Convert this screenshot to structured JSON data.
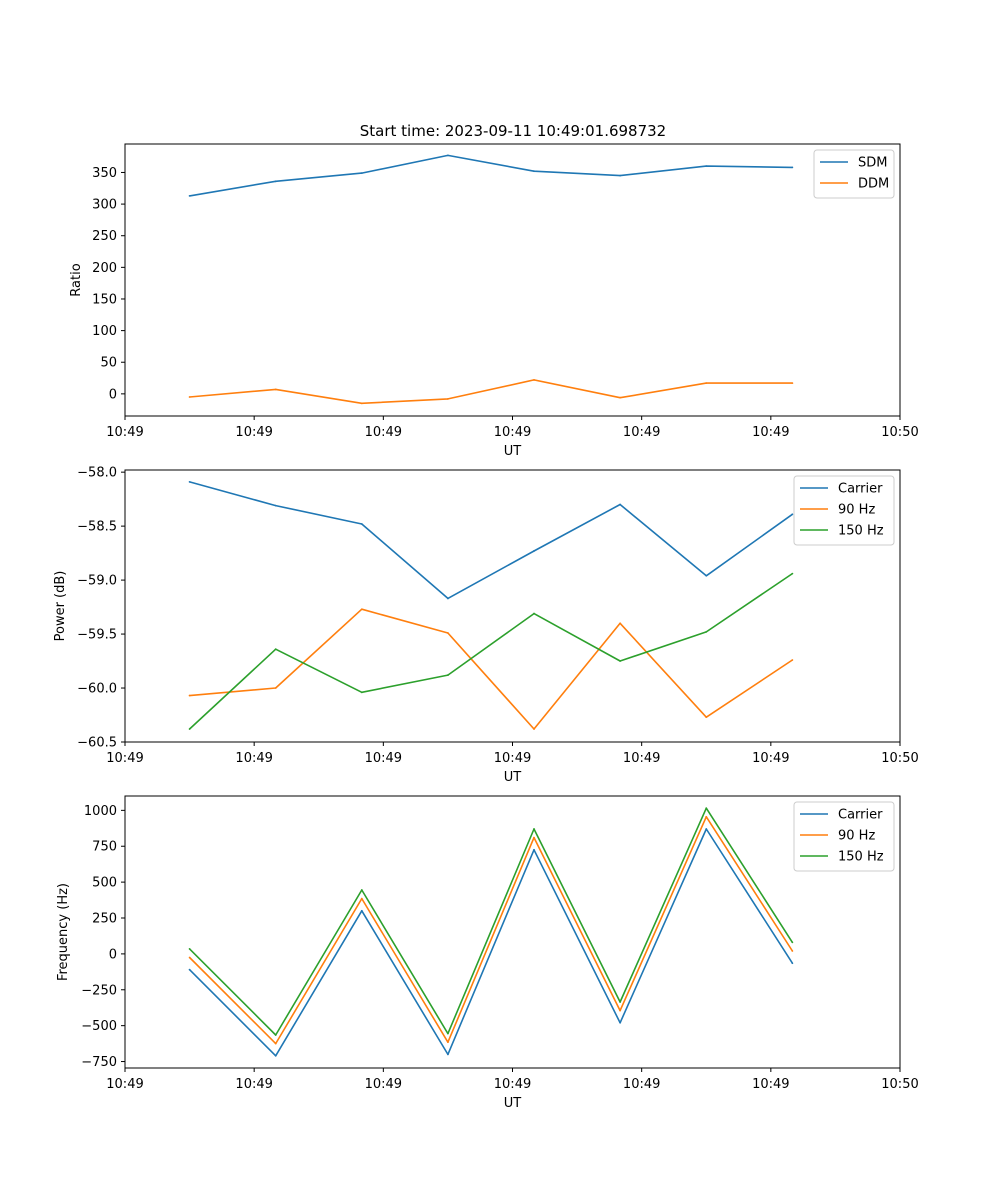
{
  "figure_title": "Start time: 2023-09-11 10:49:01.698732",
  "colors": {
    "blue": "#1f77b4",
    "orange": "#ff7f0e",
    "green": "#2ca02c"
  },
  "chart_data": [
    {
      "type": "line",
      "title": "Start time: 2023-09-11 10:49:01.698732",
      "xlabel": "UT",
      "ylabel": "Ratio",
      "grid": false,
      "legend_position": "top-right",
      "x": [
        1,
        2,
        3,
        4,
        5,
        6,
        7,
        8
      ],
      "xlim": [
        0.25,
        9.25
      ],
      "xticks": [
        0.25,
        1.75,
        3.25,
        4.75,
        6.25,
        7.75,
        9.25
      ],
      "xtick_labels": [
        "10:49",
        "10:49",
        "10:49",
        "10:49",
        "10:49",
        "10:49",
        "10:50"
      ],
      "ylim": [
        -35,
        395
      ],
      "yticks": [
        0,
        50,
        100,
        150,
        200,
        250,
        300,
        350
      ],
      "ytick_labels": [
        "0",
        "50",
        "100",
        "150",
        "200",
        "250",
        "300",
        "350"
      ],
      "series": [
        {
          "name": "SDM",
          "color": "#1f77b4",
          "values": [
            313,
            336,
            349,
            377,
            352,
            345,
            360,
            358
          ]
        },
        {
          "name": "DDM",
          "color": "#ff7f0e",
          "values": [
            -5,
            7,
            -15,
            -8,
            22,
            -6,
            17,
            17
          ]
        }
      ]
    },
    {
      "type": "line",
      "title": "",
      "xlabel": "UT",
      "ylabel": "Power (dB)",
      "grid": false,
      "legend_position": "top-right",
      "x": [
        1,
        2,
        3,
        4,
        5,
        6,
        7,
        8
      ],
      "xlim": [
        0.25,
        9.25
      ],
      "xticks": [
        0.25,
        1.75,
        3.25,
        4.75,
        6.25,
        7.75,
        9.25
      ],
      "xtick_labels": [
        "10:49",
        "10:49",
        "10:49",
        "10:49",
        "10:49",
        "10:49",
        "10:50"
      ],
      "ylim": [
        -60.5,
        -57.98
      ],
      "yticks": [
        -60.5,
        -60.0,
        -59.5,
        -59.0,
        -58.5,
        -58.0
      ],
      "ytick_labels": [
        "−60.5",
        "−60.0",
        "−59.5",
        "−59.0",
        "−58.5",
        "−58.0"
      ],
      "series": [
        {
          "name": "Carrier",
          "color": "#1f77b4",
          "values": [
            -58.09,
            -58.31,
            -58.48,
            -59.17,
            -58.73,
            -58.3,
            -58.96,
            -58.39
          ]
        },
        {
          "name": "90 Hz",
          "color": "#ff7f0e",
          "values": [
            -60.07,
            -60.0,
            -59.27,
            -59.49,
            -60.38,
            -59.4,
            -60.27,
            -59.74
          ]
        },
        {
          "name": "150 Hz",
          "color": "#2ca02c",
          "values": [
            -60.38,
            -59.64,
            -60.04,
            -59.88,
            -59.31,
            -59.75,
            -59.48,
            -58.94
          ]
        }
      ]
    },
    {
      "type": "line",
      "title": "",
      "xlabel": "UT",
      "ylabel": "Frequency (Hz)",
      "grid": false,
      "legend_position": "top-right",
      "x": [
        1,
        2,
        3,
        4,
        5,
        6,
        7,
        8
      ],
      "xlim": [
        0.25,
        9.25
      ],
      "xticks": [
        0.25,
        1.75,
        3.25,
        4.75,
        6.25,
        7.75,
        9.25
      ],
      "xtick_labels": [
        "10:49",
        "10:49",
        "10:49",
        "10:49",
        "10:49",
        "10:49",
        "10:50"
      ],
      "ylim": [
        -795,
        1100
      ],
      "yticks": [
        -750,
        -500,
        -250,
        0,
        250,
        500,
        750,
        1000
      ],
      "ytick_labels": [
        "−750",
        "−500",
        "−250",
        "0",
        "250",
        "500",
        "750",
        "1000"
      ],
      "series": [
        {
          "name": "Carrier",
          "color": "#1f77b4",
          "values": [
            -110,
            -710,
            300,
            -700,
            725,
            -480,
            870,
            -65
          ]
        },
        {
          "name": "90 Hz",
          "color": "#ff7f0e",
          "values": [
            -25,
            -625,
            385,
            -615,
            810,
            -395,
            955,
            20
          ]
        },
        {
          "name": "150 Hz",
          "color": "#2ca02c",
          "values": [
            35,
            -565,
            445,
            -555,
            870,
            -335,
            1015,
            80
          ]
        }
      ]
    }
  ]
}
